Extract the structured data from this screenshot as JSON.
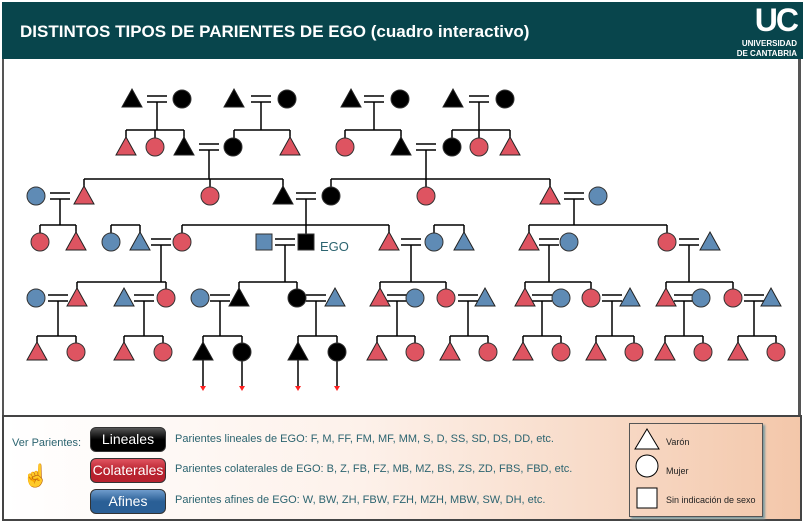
{
  "header": {
    "title": "DISTINTOS TIPOS DE PARIENTES DE EGO (cuadro interactivo)",
    "logo_text": "UC",
    "logo_sub1": "UNIVERSIDAD",
    "logo_sub2": "DE CANTABRIA"
  },
  "diagram": {
    "ego_label": "EGO",
    "colors": {
      "lineal": "#000000",
      "colateral": "#de5461",
      "afin": "#5f8bb5",
      "arrow": "#ff2020"
    }
  },
  "footer": {
    "ver_label": "Ver Parientes:",
    "hand_icon": "pointer-hand-icon",
    "buttons": [
      {
        "label": "Lineales",
        "color": "#000000",
        "desc": "Parientes lineales de EGO: F, M, FF, FM, MF, MM, S, D, SS, SD, DS, DD, etc."
      },
      {
        "label": "Colaterales",
        "color": "#b8222e",
        "desc": "Parientes colaterales de EGO: B, Z, FB, FZ, MB, MZ, BS, ZS, ZD, FBS, FBD, etc."
      },
      {
        "label": "Afines",
        "color": "#2a5f96",
        "desc": "Parientes afines de EGO: W, BW, ZH, FBW, FZH, MZH, MBW, SW, DH, etc."
      }
    ],
    "legend": {
      "male": "Varón",
      "female": "Mujer",
      "unknown": "Sin indicación de sexo"
    }
  }
}
